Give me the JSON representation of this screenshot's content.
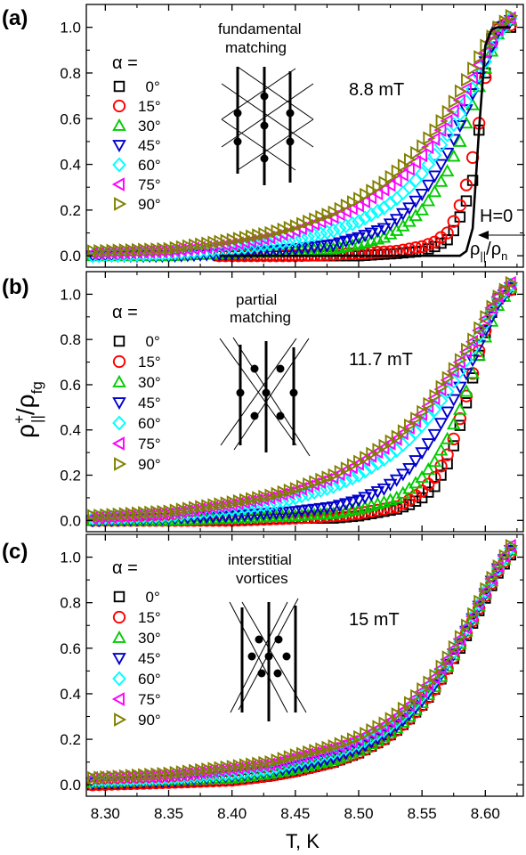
{
  "figure": {
    "xlabel": "T, K",
    "ylabel_main": "ρ",
    "ylabel_sup": "+",
    "ylabel_sub1": "||",
    "ylabel_slash": "/ρ",
    "ylabel_sub2": "fg",
    "alpha_label": "α =",
    "colors": {
      "0°": "#000000",
      "15°": "#ff0000",
      "30°": "#00cc00",
      "45°": "#0000cc",
      "60°": "#00ffff",
      "75°": "#ff00ff",
      "90°": "#808000"
    }
  },
  "chart_data": [
    {
      "type": "scatter",
      "panel_label": "(a)",
      "title": "",
      "annotation_lines": [
        "fundamental",
        "matching"
      ],
      "field_label": "8.8 mT",
      "h0_label": "H=0",
      "rho_label_main": "ρ",
      "rho_label_sub1": "||",
      "rho_label_slash": "/ρ",
      "rho_label_sub2": "n",
      "xlim": [
        8.285,
        8.63
      ],
      "ylim": [
        -0.05,
        1.1
      ],
      "xticks": [
        "8.30",
        "8.35",
        "8.40",
        "8.45",
        "8.50",
        "8.55",
        "8.60"
      ],
      "yticks": [
        "0.0",
        "0.2",
        "0.4",
        "0.6",
        "0.8",
        "1.0"
      ],
      "legend": [
        "0°",
        "15°",
        "30°",
        "45°",
        "60°",
        "75°",
        "90°"
      ],
      "series": [
        {
          "name": "0°",
          "marker": "square",
          "T": [
            8.39,
            8.45,
            8.5,
            8.53,
            8.55,
            8.56,
            8.57,
            8.575,
            8.58,
            8.585,
            8.59,
            8.595,
            8.6,
            8.605,
            8.61,
            8.615,
            8.62
          ],
          "values": [
            0.0,
            0.0,
            0.0,
            0.01,
            0.02,
            0.04,
            0.07,
            0.11,
            0.17,
            0.24,
            0.33,
            0.55,
            0.8,
            0.95,
            1.0,
            1.0,
            1.0
          ]
        },
        {
          "name": "15°",
          "marker": "circle",
          "T": [
            8.39,
            8.45,
            8.5,
            8.53,
            8.55,
            8.56,
            8.57,
            8.575,
            8.58,
            8.585,
            8.59,
            8.595,
            8.6,
            8.605,
            8.61,
            8.615,
            8.62
          ],
          "values": [
            0.0,
            0.0,
            0.01,
            0.02,
            0.04,
            0.06,
            0.1,
            0.15,
            0.22,
            0.31,
            0.43,
            0.58,
            0.78,
            0.93,
            0.99,
            1.01,
            1.01
          ]
        },
        {
          "name": "30°",
          "marker": "triangle-up",
          "T": [
            8.29,
            8.35,
            8.4,
            8.45,
            8.48,
            8.5,
            8.52,
            8.53,
            8.54,
            8.55,
            8.56,
            8.57,
            8.58,
            8.59,
            8.6,
            8.61,
            8.62
          ],
          "values": [
            0.0,
            0.0,
            0.01,
            0.02,
            0.03,
            0.05,
            0.08,
            0.11,
            0.15,
            0.2,
            0.28,
            0.37,
            0.5,
            0.66,
            0.82,
            0.97,
            1.03
          ]
        },
        {
          "name": "45°",
          "marker": "triangle-down",
          "T": [
            8.29,
            8.35,
            8.4,
            8.45,
            8.48,
            8.5,
            8.52,
            8.53,
            8.54,
            8.55,
            8.56,
            8.57,
            8.58,
            8.59,
            8.6,
            8.61,
            8.62
          ],
          "values": [
            0.0,
            0.0,
            0.01,
            0.03,
            0.05,
            0.08,
            0.12,
            0.16,
            0.21,
            0.27,
            0.35,
            0.45,
            0.57,
            0.71,
            0.85,
            0.98,
            1.03
          ]
        },
        {
          "name": "60°",
          "marker": "diamond",
          "T": [
            8.29,
            8.35,
            8.4,
            8.43,
            8.45,
            8.48,
            8.5,
            8.52,
            8.53,
            8.54,
            8.55,
            8.56,
            8.57,
            8.58,
            8.59,
            8.6,
            8.61,
            8.62
          ],
          "values": [
            0.0,
            0.01,
            0.03,
            0.05,
            0.07,
            0.11,
            0.15,
            0.21,
            0.25,
            0.3,
            0.36,
            0.44,
            0.53,
            0.62,
            0.73,
            0.85,
            0.97,
            1.04
          ]
        },
        {
          "name": "75°",
          "marker": "triangle-left",
          "T": [
            8.29,
            8.35,
            8.4,
            8.43,
            8.45,
            8.48,
            8.5,
            8.52,
            8.53,
            8.54,
            8.55,
            8.56,
            8.57,
            8.58,
            8.59,
            8.6,
            8.61,
            8.62
          ],
          "values": [
            0.01,
            0.02,
            0.05,
            0.08,
            0.11,
            0.17,
            0.22,
            0.29,
            0.33,
            0.38,
            0.44,
            0.51,
            0.59,
            0.68,
            0.78,
            0.89,
            0.99,
            1.04
          ]
        },
        {
          "name": "90°",
          "marker": "triangle-right",
          "T": [
            8.29,
            8.35,
            8.4,
            8.43,
            8.45,
            8.48,
            8.5,
            8.52,
            8.53,
            8.54,
            8.55,
            8.56,
            8.57,
            8.58,
            8.59,
            8.6,
            8.61,
            8.62
          ],
          "values": [
            0.02,
            0.03,
            0.07,
            0.1,
            0.13,
            0.19,
            0.25,
            0.32,
            0.37,
            0.42,
            0.48,
            0.55,
            0.63,
            0.72,
            0.82,
            0.92,
            1.0,
            1.05
          ]
        }
      ],
      "reference_line": {
        "name": "H=0",
        "T": [
          8.39,
          8.45,
          8.5,
          8.55,
          8.58,
          8.585,
          8.59,
          8.595,
          8.6,
          8.605,
          8.61,
          8.62
        ],
        "values": [
          0.0,
          0.0,
          0.0,
          0.0,
          0.0,
          0.02,
          0.12,
          0.55,
          0.92,
          0.99,
          1.0,
          1.0
        ]
      }
    },
    {
      "type": "scatter",
      "panel_label": "(b)",
      "title": "",
      "annotation_lines": [
        "partial",
        "matching"
      ],
      "field_label": "11.7 mT",
      "xlim": [
        8.285,
        8.63
      ],
      "ylim": [
        -0.05,
        1.1
      ],
      "xticks": [
        "8.30",
        "8.35",
        "8.40",
        "8.45",
        "8.50",
        "8.55",
        "8.60"
      ],
      "yticks": [
        "0.0",
        "0.2",
        "0.4",
        "0.6",
        "0.8",
        "1.0"
      ],
      "legend": [
        "0°",
        "15°",
        "30°",
        "45°",
        "60°",
        "75°",
        "90°"
      ],
      "series": [
        {
          "name": "0°",
          "marker": "square",
          "T": [
            8.29,
            8.35,
            8.4,
            8.45,
            8.48,
            8.5,
            8.52,
            8.53,
            8.54,
            8.55,
            8.56,
            8.57,
            8.575,
            8.58,
            8.585,
            8.59,
            8.595,
            8.6,
            8.605,
            8.61,
            8.615,
            8.62
          ],
          "values": [
            0.0,
            0.0,
            0.0,
            0.01,
            0.01,
            0.02,
            0.04,
            0.05,
            0.07,
            0.1,
            0.15,
            0.25,
            0.33,
            0.42,
            0.52,
            0.63,
            0.73,
            0.83,
            0.92,
            0.98,
            1.01,
            1.02
          ]
        },
        {
          "name": "15°",
          "marker": "circle",
          "T": [
            8.29,
            8.35,
            8.4,
            8.45,
            8.48,
            8.5,
            8.52,
            8.53,
            8.54,
            8.55,
            8.56,
            8.57,
            8.575,
            8.58,
            8.585,
            8.59,
            8.595,
            8.6,
            8.605,
            8.61,
            8.615,
            8.62
          ],
          "values": [
            0.0,
            0.0,
            0.0,
            0.01,
            0.02,
            0.03,
            0.05,
            0.06,
            0.09,
            0.13,
            0.19,
            0.29,
            0.36,
            0.45,
            0.55,
            0.65,
            0.75,
            0.84,
            0.93,
            0.98,
            1.01,
            1.02
          ]
        },
        {
          "name": "30°",
          "marker": "triangle-up",
          "T": [
            8.29,
            8.35,
            8.4,
            8.45,
            8.48,
            8.5,
            8.52,
            8.53,
            8.54,
            8.55,
            8.56,
            8.57,
            8.58,
            8.59,
            8.6,
            8.61,
            8.62
          ],
          "values": [
            0.0,
            0.0,
            0.01,
            0.02,
            0.03,
            0.05,
            0.08,
            0.1,
            0.14,
            0.19,
            0.26,
            0.36,
            0.49,
            0.65,
            0.81,
            0.95,
            1.03
          ]
        },
        {
          "name": "45°",
          "marker": "triangle-down",
          "T": [
            8.29,
            8.35,
            8.4,
            8.45,
            8.48,
            8.5,
            8.52,
            8.53,
            8.54,
            8.55,
            8.56,
            8.57,
            8.58,
            8.59,
            8.6,
            8.61,
            8.62
          ],
          "values": [
            0.0,
            0.01,
            0.02,
            0.04,
            0.06,
            0.09,
            0.14,
            0.18,
            0.23,
            0.3,
            0.38,
            0.48,
            0.59,
            0.71,
            0.84,
            0.96,
            1.03
          ]
        },
        {
          "name": "60°",
          "marker": "diamond",
          "T": [
            8.29,
            8.35,
            8.4,
            8.43,
            8.45,
            8.48,
            8.5,
            8.52,
            8.53,
            8.54,
            8.55,
            8.56,
            8.57,
            8.58,
            8.59,
            8.6,
            8.61,
            8.62
          ],
          "values": [
            0.01,
            0.02,
            0.05,
            0.07,
            0.1,
            0.15,
            0.2,
            0.27,
            0.31,
            0.36,
            0.42,
            0.49,
            0.57,
            0.66,
            0.76,
            0.87,
            0.98,
            1.04
          ]
        },
        {
          "name": "75°",
          "marker": "triangle-left",
          "T": [
            8.29,
            8.35,
            8.4,
            8.43,
            8.45,
            8.48,
            8.5,
            8.52,
            8.53,
            8.54,
            8.55,
            8.56,
            8.57,
            8.58,
            8.59,
            8.6,
            8.61,
            8.62
          ],
          "values": [
            0.01,
            0.03,
            0.07,
            0.1,
            0.13,
            0.19,
            0.25,
            0.32,
            0.36,
            0.41,
            0.47,
            0.54,
            0.62,
            0.7,
            0.79,
            0.89,
            0.99,
            1.05
          ]
        },
        {
          "name": "90°",
          "marker": "triangle-right",
          "T": [
            8.29,
            8.35,
            8.4,
            8.43,
            8.45,
            8.48,
            8.5,
            8.52,
            8.53,
            8.54,
            8.55,
            8.56,
            8.57,
            8.58,
            8.59,
            8.6,
            8.61,
            8.62
          ],
          "values": [
            0.02,
            0.04,
            0.08,
            0.11,
            0.14,
            0.2,
            0.26,
            0.33,
            0.37,
            0.42,
            0.48,
            0.55,
            0.63,
            0.71,
            0.8,
            0.9,
            0.99,
            1.05
          ]
        }
      ]
    },
    {
      "type": "scatter",
      "panel_label": "(c)",
      "title": "",
      "annotation_lines": [
        "interstitial",
        "vortices"
      ],
      "field_label": "15 mT",
      "xlim": [
        8.285,
        8.63
      ],
      "ylim": [
        -0.05,
        1.1
      ],
      "xticks": [
        "8.30",
        "8.35",
        "8.40",
        "8.45",
        "8.50",
        "8.55",
        "8.60"
      ],
      "yticks": [
        "0.0",
        "0.2",
        "0.4",
        "0.6",
        "0.8",
        "1.0"
      ],
      "legend": [
        "0°",
        "15°",
        "30°",
        "45°",
        "60°",
        "75°",
        "90°"
      ],
      "series": [
        {
          "name": "0°",
          "marker": "square",
          "T": [
            8.29,
            8.35,
            8.4,
            8.43,
            8.45,
            8.48,
            8.5,
            8.52,
            8.53,
            8.54,
            8.55,
            8.56,
            8.57,
            8.58,
            8.59,
            8.6,
            8.61,
            8.62
          ],
          "values": [
            0.0,
            0.01,
            0.02,
            0.04,
            0.06,
            0.1,
            0.14,
            0.2,
            0.24,
            0.29,
            0.35,
            0.42,
            0.51,
            0.6,
            0.71,
            0.82,
            0.93,
            1.01
          ]
        },
        {
          "name": "15°",
          "marker": "circle",
          "T": [
            8.29,
            8.35,
            8.4,
            8.43,
            8.45,
            8.48,
            8.5,
            8.52,
            8.53,
            8.54,
            8.55,
            8.56,
            8.57,
            8.58,
            8.59,
            8.6,
            8.61,
            8.62
          ],
          "values": [
            0.0,
            0.01,
            0.02,
            0.04,
            0.06,
            0.1,
            0.14,
            0.2,
            0.24,
            0.29,
            0.35,
            0.42,
            0.51,
            0.61,
            0.72,
            0.83,
            0.94,
            1.02
          ]
        },
        {
          "name": "30°",
          "marker": "triangle-up",
          "T": [
            8.29,
            8.35,
            8.4,
            8.43,
            8.45,
            8.48,
            8.5,
            8.52,
            8.53,
            8.54,
            8.55,
            8.56,
            8.57,
            8.58,
            8.59,
            8.6,
            8.61,
            8.62
          ],
          "values": [
            0.01,
            0.02,
            0.03,
            0.05,
            0.07,
            0.11,
            0.15,
            0.21,
            0.25,
            0.3,
            0.36,
            0.43,
            0.52,
            0.62,
            0.73,
            0.84,
            0.95,
            1.03
          ]
        },
        {
          "name": "45°",
          "marker": "triangle-down",
          "T": [
            8.29,
            8.35,
            8.4,
            8.43,
            8.45,
            8.48,
            8.5,
            8.52,
            8.53,
            8.54,
            8.55,
            8.56,
            8.57,
            8.58,
            8.59,
            8.6,
            8.61,
            8.62
          ],
          "values": [
            0.01,
            0.02,
            0.04,
            0.06,
            0.08,
            0.12,
            0.16,
            0.22,
            0.26,
            0.31,
            0.37,
            0.44,
            0.53,
            0.62,
            0.73,
            0.84,
            0.95,
            1.03
          ]
        },
        {
          "name": "60°",
          "marker": "diamond",
          "T": [
            8.29,
            8.35,
            8.4,
            8.43,
            8.45,
            8.48,
            8.5,
            8.52,
            8.53,
            8.54,
            8.55,
            8.56,
            8.57,
            8.58,
            8.59,
            8.6,
            8.61,
            8.62
          ],
          "values": [
            0.02,
            0.03,
            0.05,
            0.07,
            0.1,
            0.14,
            0.18,
            0.24,
            0.28,
            0.33,
            0.39,
            0.46,
            0.54,
            0.63,
            0.74,
            0.85,
            0.95,
            1.04
          ]
        },
        {
          "name": "75°",
          "marker": "triangle-left",
          "T": [
            8.29,
            8.35,
            8.4,
            8.43,
            8.45,
            8.48,
            8.5,
            8.52,
            8.53,
            8.54,
            8.55,
            8.56,
            8.57,
            8.58,
            8.59,
            8.6,
            8.61,
            8.62
          ],
          "values": [
            0.03,
            0.04,
            0.07,
            0.09,
            0.12,
            0.16,
            0.2,
            0.26,
            0.3,
            0.35,
            0.41,
            0.47,
            0.55,
            0.64,
            0.74,
            0.85,
            0.96,
            1.05
          ]
        },
        {
          "name": "90°",
          "marker": "triangle-right",
          "T": [
            8.29,
            8.35,
            8.4,
            8.43,
            8.45,
            8.48,
            8.5,
            8.52,
            8.53,
            8.54,
            8.55,
            8.56,
            8.57,
            8.58,
            8.59,
            8.6,
            8.61,
            8.62
          ],
          "values": [
            0.03,
            0.05,
            0.08,
            0.1,
            0.13,
            0.17,
            0.21,
            0.27,
            0.31,
            0.36,
            0.42,
            0.48,
            0.56,
            0.65,
            0.75,
            0.86,
            0.96,
            1.05
          ]
        }
      ]
    }
  ]
}
